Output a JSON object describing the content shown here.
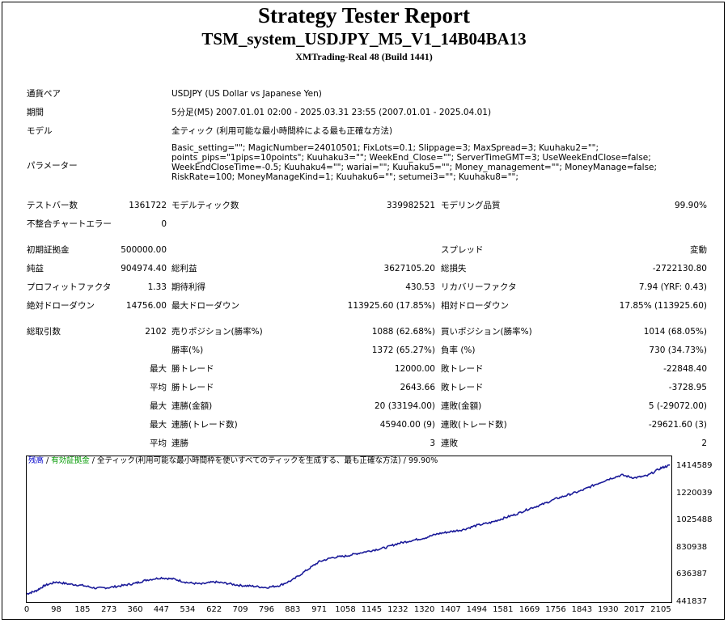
{
  "header": {
    "title": "Strategy Tester Report",
    "ea_name": "TSM_system_USDJPY_M5_V1_14B04BA13",
    "server_build": "XMTrading-Real 48 (Build 1441)"
  },
  "info": {
    "pair_label": "通貨ペア",
    "pair_value": "USDJPY (US Dollar vs Japanese Yen)",
    "period_label": "期間",
    "period_value": "5分足(M5) 2007.01.01 02:00 - 2025.03.31 23:55 (2007.01.01 - 2025.04.01)",
    "model_label": "モデル",
    "model_value": "全ティック (利用可能な最小時間枠による最も正確な方法)",
    "params_label": "パラメーター",
    "params_value": "Basic_setting=\"\"; MagicNumber=24010501; FixLots=0.1; Slippage=3; MaxSpread=3; Kuuhaku2=\"\"; points_pips=\"1pips=10points\"; Kuuhaku3=\"\"; WeekEnd_Close=\"\"; ServerTimeGMT=3; UseWeekEndClose=false; WeekEndCloseTime=-0.5; Kuuhaku4=\"\"; wariai=\"\"; Kuuhaku5=\"\"; Money_management=\"\"; MoneyManage=false; RiskRate=100; MoneyManageKind=1; Kuuhaku6=\"\"; setumei3=\"\"; Kuuhaku8=\"\";"
  },
  "stats": {
    "bars_label": "テストバー数",
    "bars_value": "1361722",
    "ticks_label": "モデルティック数",
    "ticks_value": "339982521",
    "quality_label": "モデリング品質",
    "quality_value": "99.90%",
    "mismatch_label": "不整合チャートエラー",
    "mismatch_value": "0",
    "deposit_label": "初期証拠金",
    "deposit_value": "500000.00",
    "spread_label": "スプレッド",
    "spread_value": "変動",
    "net_label": "純益",
    "net_value": "904974.40",
    "gross_profit_label": "総利益",
    "gross_profit_value": "3627105.20",
    "gross_loss_label": "総損失",
    "gross_loss_value": "-2722130.80",
    "pf_label": "プロフィットファクタ",
    "pf_value": "1.33",
    "expected_label": "期待利得",
    "expected_value": "430.53",
    "recovery_label": "リカバリーファクタ",
    "recovery_value": "7.94 (YRF: 0.43)",
    "abs_dd_label": "絶対ドローダウン",
    "abs_dd_value": "14756.00",
    "max_dd_label": "最大ドローダウン",
    "max_dd_value": "113925.60 (17.85%)",
    "rel_dd_label": "相対ドローダウン",
    "rel_dd_value": "17.85% (113925.60)",
    "trades_label": "総取引数",
    "trades_value": "2102",
    "short_label": "売りポジション(勝率%)",
    "short_value": "1088 (62.68%)",
    "long_label": "買いポジション(勝率%)",
    "long_value": "1014 (68.05%)",
    "win_label": "勝率(%)",
    "win_value": "1372 (65.27%)",
    "loss_label": "負率 (%)",
    "loss_value": "730 (34.73%)",
    "max_prefix": "最大",
    "avg_prefix": "平均",
    "max_win_label": "勝トレード",
    "max_win_value": "12000.00",
    "max_loss_label": "敗トレード",
    "max_loss_value": "-22848.40",
    "avg_win_label": "勝トレード",
    "avg_win_value": "2643.66",
    "avg_loss_label": "敗トレード",
    "avg_loss_value": "-3728.95",
    "max_cons_win_label": "連勝(金額)",
    "max_cons_win_value": "20 (33194.00)",
    "max_cons_loss_label": "連敗(金額)",
    "max_cons_loss_value": "5 (-29072.00)",
    "max_cons_profit_label": "連勝(トレード数)",
    "max_cons_profit_value": "45940.00 (9)",
    "max_cons_lossamt_label": "連敗(トレード数)",
    "max_cons_lossamt_value": "-29621.60 (3)",
    "avg_cons_win_label": "連勝",
    "avg_cons_win_value": "3",
    "avg_cons_loss_label": "連敗",
    "avg_cons_loss_value": "2"
  },
  "chart_legend": {
    "balance": "残高",
    "sep1": " / ",
    "equity": "有効証拠金",
    "sep2": " / ",
    "desc": "全ティック(利用可能な最小時間枠を使いすべてのティックを生成する、最も正確な方法) / 99.90%"
  },
  "chart_data": {
    "type": "line",
    "series": [
      {
        "color": "#1a1a99",
        "x": [
          0,
          30,
          60,
          98,
          140,
          185,
          230,
          273,
          320,
          360,
          400,
          447,
          490,
          534,
          580,
          622,
          665,
          709,
          750,
          796,
          840,
          883,
          930,
          971,
          1015,
          1058,
          1100,
          1145,
          1190,
          1232,
          1275,
          1320,
          1365,
          1407,
          1450,
          1494,
          1540,
          1581,
          1625,
          1669,
          1712,
          1756,
          1800,
          1843,
          1885,
          1930,
          1975,
          2017,
          2060,
          2105,
          2135
        ],
        "y": [
          500000,
          520000,
          560000,
          585000,
          570000,
          560000,
          540000,
          545000,
          560000,
          575000,
          600000,
          615000,
          605000,
          580000,
          570000,
          585000,
          575000,
          560000,
          555000,
          545000,
          560000,
          600000,
          670000,
          730000,
          760000,
          770000,
          790000,
          810000,
          830000,
          860000,
          880000,
          900000,
          930000,
          945000,
          960000,
          990000,
          1010000,
          1040000,
          1070000,
          1110000,
          1140000,
          1180000,
          1210000,
          1240000,
          1280000,
          1320000,
          1350000,
          1330000,
          1345000,
          1400000,
          1420000
        ]
      }
    ],
    "yticks": [
      "1414589",
      "1220039",
      "1025488",
      "830938",
      "636387",
      "441837"
    ],
    "ytick_values": [
      1414589,
      1220039,
      1025488,
      830938,
      636387,
      441837
    ],
    "xticks": [
      "0",
      "98",
      "185",
      "273",
      "360",
      "447",
      "534",
      "622",
      "709",
      "796",
      "883",
      "971",
      "1058",
      "1145",
      "1232",
      "1320",
      "1407",
      "1494",
      "1581",
      "1669",
      "1756",
      "1843",
      "1930",
      "2017",
      "2105"
    ],
    "ylim": [
      441837,
      1414589
    ],
    "xlim": [
      0,
      2140
    ],
    "grid": false
  }
}
